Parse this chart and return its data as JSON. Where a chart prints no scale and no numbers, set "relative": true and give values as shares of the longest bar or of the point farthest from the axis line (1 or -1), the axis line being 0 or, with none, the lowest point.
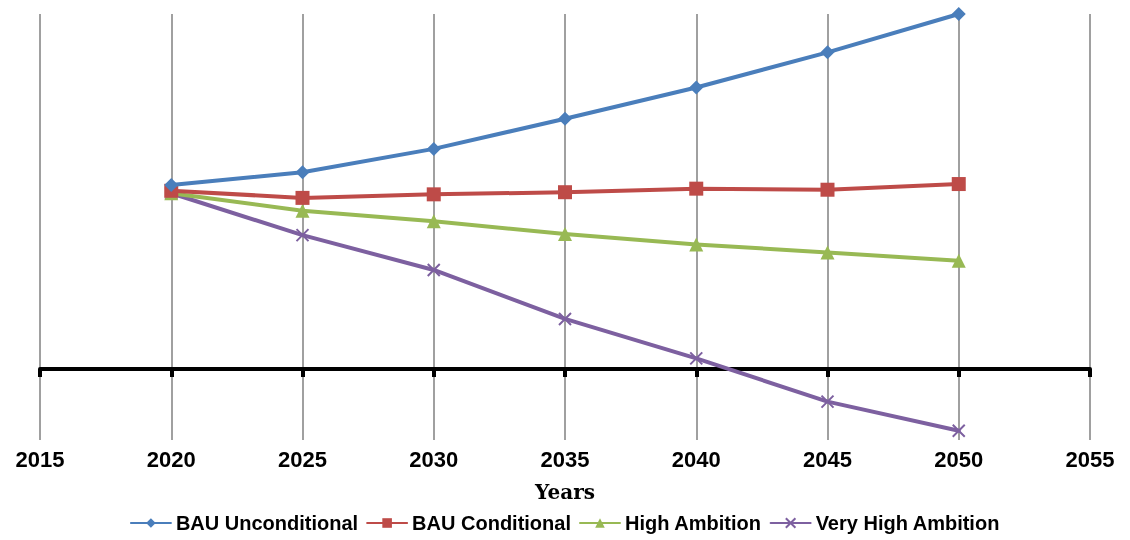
{
  "chart_data": {
    "type": "line",
    "relative": true,
    "xlabel": "Years",
    "x": [
      2020,
      2025,
      2030,
      2035,
      2040,
      2045,
      2050
    ],
    "xlim": [
      2015,
      2055
    ],
    "xticks": [
      2015,
      2020,
      2025,
      2030,
      2035,
      2040,
      2045,
      2050,
      2055
    ],
    "grid": "x",
    "legend": "bottom",
    "line_style": "solid",
    "series": [
      {
        "name": "BAU Unconditional",
        "color": "#4a7ebb",
        "marker": "diamond",
        "values": [
          0.518,
          0.554,
          0.62,
          0.705,
          0.793,
          0.892,
          1
        ]
      },
      {
        "name": "BAU Conditional",
        "color": "#be4b48",
        "marker": "square",
        "values": [
          0.502,
          0.482,
          0.492,
          0.498,
          0.508,
          0.505,
          0.521
        ]
      },
      {
        "name": "High Ambition",
        "color": "#98b954",
        "marker": "triangle",
        "values": [
          0.495,
          0.446,
          0.416,
          0.38,
          0.351,
          0.328,
          0.305
        ]
      },
      {
        "name": "Very High Ambition",
        "color": "#7d60a0",
        "marker": "cross",
        "values": [
          0.495,
          0.377,
          0.279,
          0.141,
          0.03,
          -0.092,
          -0.174
        ]
      }
    ]
  }
}
